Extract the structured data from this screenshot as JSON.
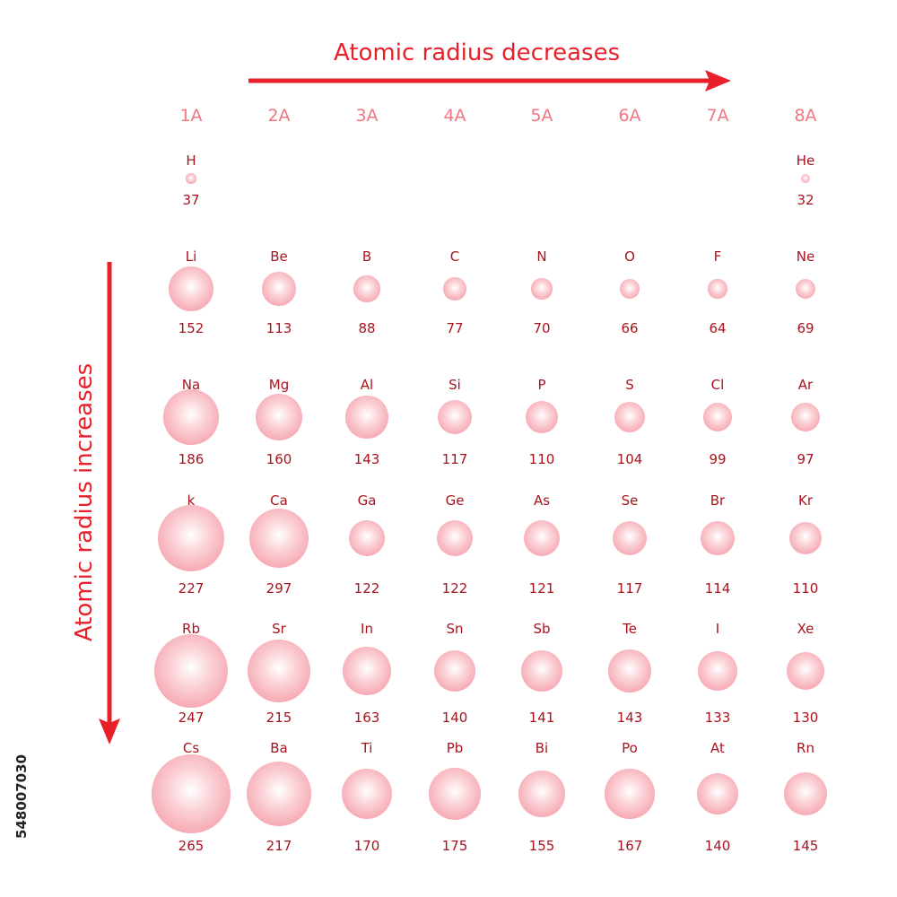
{
  "titles": {
    "horizontal": "Atomic radius decreases",
    "vertical": "Atomic radius increases"
  },
  "colors": {
    "arrow": "#e8202a",
    "group_label": "#f07682",
    "element_text": "#a8141e",
    "atom_fill": "#f28c98"
  },
  "groups": [
    "1A",
    "2A",
    "3A",
    "4A",
    "5A",
    "6A",
    "7A",
    "8A"
  ],
  "rows": [
    [
      {
        "symbol": "H",
        "radius": 37
      },
      null,
      null,
      null,
      null,
      null,
      null,
      {
        "symbol": "He",
        "radius": 32
      }
    ],
    [
      {
        "symbol": "Li",
        "radius": 152
      },
      {
        "symbol": "Be",
        "radius": 113
      },
      {
        "symbol": "B",
        "radius": 88
      },
      {
        "symbol": "C",
        "radius": 77
      },
      {
        "symbol": "N",
        "radius": 70
      },
      {
        "symbol": "O",
        "radius": 66
      },
      {
        "symbol": "F",
        "radius": 64
      },
      {
        "symbol": "Ne",
        "radius": 69
      }
    ],
    [
      {
        "symbol": "Na",
        "radius": 186
      },
      {
        "symbol": "Mg",
        "radius": 160
      },
      {
        "symbol": "Al",
        "radius": 143
      },
      {
        "symbol": "Si",
        "radius": 117
      },
      {
        "symbol": "P",
        "radius": 110
      },
      {
        "symbol": "S",
        "radius": 104
      },
      {
        "symbol": "Cl",
        "radius": 99
      },
      {
        "symbol": "Ar",
        "radius": 97
      }
    ],
    [
      {
        "symbol": "k",
        "radius": 227
      },
      {
        "symbol": "Ca",
        "radius": 297
      },
      {
        "symbol": "Ga",
        "radius": 122
      },
      {
        "symbol": "Ge",
        "radius": 122
      },
      {
        "symbol": "As",
        "radius": 121
      },
      {
        "symbol": "Se",
        "radius": 117
      },
      {
        "symbol": "Br",
        "radius": 114
      },
      {
        "symbol": "Kr",
        "radius": 110
      }
    ],
    [
      {
        "symbol": "Rb",
        "radius": 247
      },
      {
        "symbol": "Sr",
        "radius": 215
      },
      {
        "symbol": "In",
        "radius": 163
      },
      {
        "symbol": "Sn",
        "radius": 140
      },
      {
        "symbol": "Sb",
        "radius": 141
      },
      {
        "symbol": "Te",
        "radius": 143
      },
      {
        "symbol": "I",
        "radius": 133
      },
      {
        "symbol": "Xe",
        "radius": 130
      }
    ],
    [
      {
        "symbol": "Cs",
        "radius": 265
      },
      {
        "symbol": "Ba",
        "radius": 217
      },
      {
        "symbol": "Ti",
        "radius": 170
      },
      {
        "symbol": "Pb",
        "radius": 175
      },
      {
        "symbol": "Bi",
        "radius": 155
      },
      {
        "symbol": "Po",
        "radius": 167
      },
      {
        "symbol": "At",
        "radius": 140
      },
      {
        "symbol": "Rn",
        "radius": 145
      }
    ]
  ],
  "stock_id": "548007030"
}
